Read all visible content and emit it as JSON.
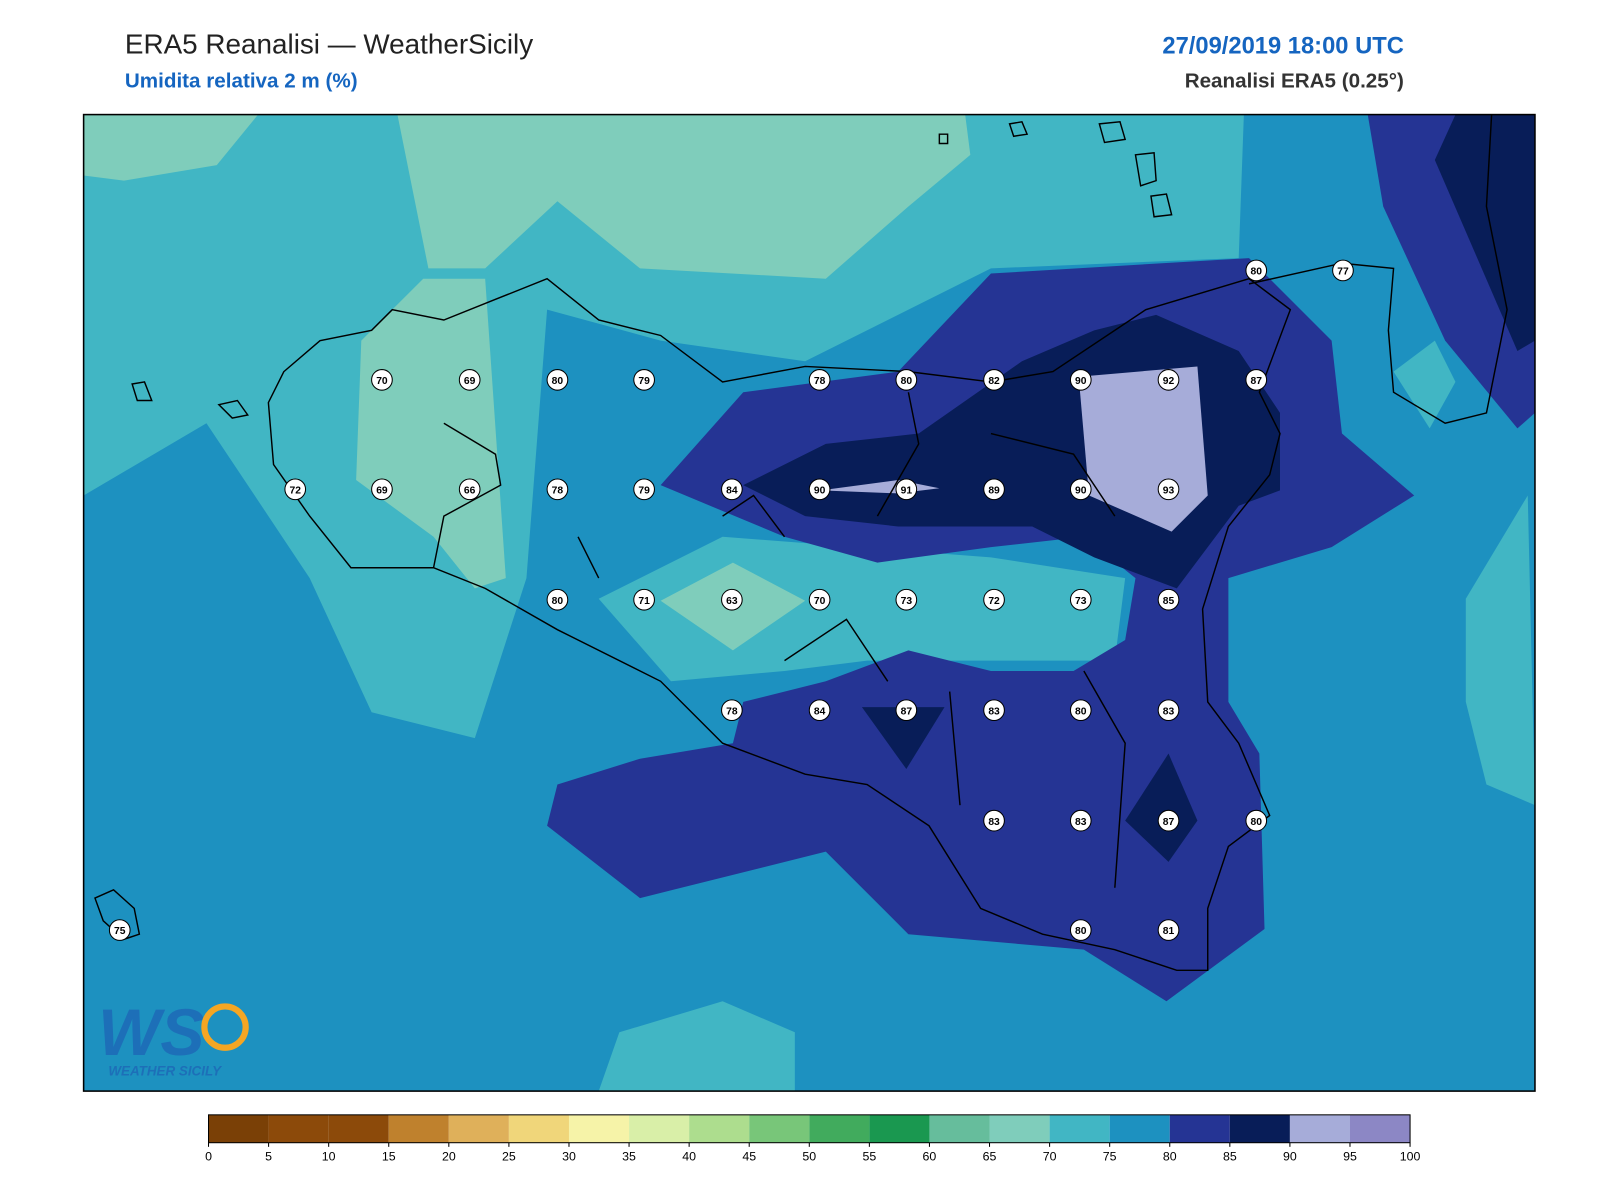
{
  "header": {
    "title": "ERA5 Reanalisi — WeatherSicily",
    "subtitle": "Umidita relativa 2 m (%)",
    "datetime": "27/09/2019 18:00 UTC",
    "source": "Reanalisi ERA5 (0.25°)"
  },
  "stations": [
    80,
    77,
    70,
    69,
    80,
    79,
    78,
    80,
    82,
    90,
    92,
    87,
    72,
    69,
    66,
    78,
    79,
    84,
    90,
    91,
    89,
    90,
    93,
    80,
    71,
    63,
    70,
    73,
    72,
    73,
    85,
    78,
    84,
    87,
    83,
    80,
    83,
    83,
    83,
    87,
    80,
    75,
    80,
    81
  ],
  "colorbar": {
    "ticks": [
      0,
      5,
      10,
      15,
      20,
      25,
      30,
      35,
      40,
      45,
      50,
      55,
      60,
      65,
      70,
      75,
      80,
      85,
      90,
      95,
      100
    ],
    "colors": [
      "#7a4006",
      "#8c4a0a",
      "#8c4a0a",
      "#bf812d",
      "#dfb05a",
      "#f0d67a",
      "#f6f3a8",
      "#d9efa8",
      "#addd8e",
      "#78c679",
      "#41ab5d",
      "#1a9850",
      "#66bd9c",
      "#7fcdbb",
      "#41b6c4",
      "#1d91c0",
      "#253494",
      "#081d58",
      "#a6acd9",
      "#8c87c5"
    ]
  },
  "logo": {
    "mark": "WS",
    "name": "WEATHER SICILY"
  }
}
